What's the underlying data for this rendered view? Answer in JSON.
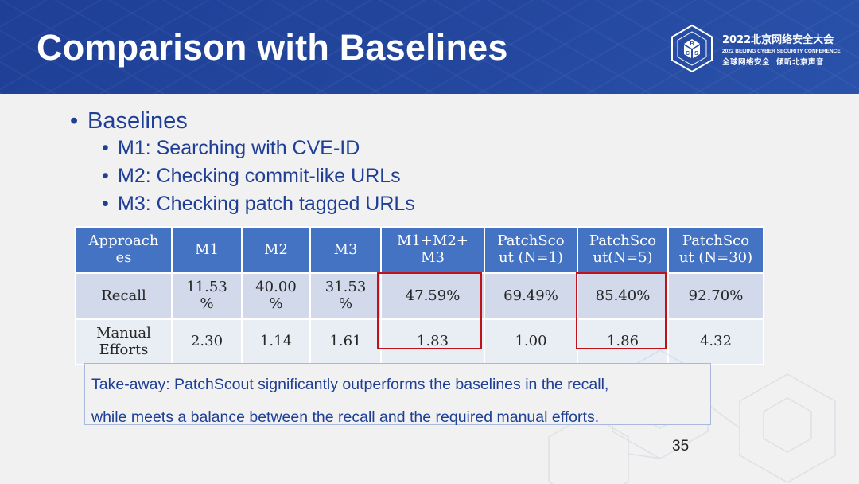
{
  "slide": {
    "title": "Comparison with Baselines",
    "page_number": "35",
    "header_color": "#24489f",
    "text_color": "#1f3f96",
    "highlight_color": "#c0121a"
  },
  "conference": {
    "name_cn": "2022北京网络安全大会",
    "name_en": "2022 BEIJING CYBER SECURITY CONFERENCE",
    "slogan_left": "全球网络安全",
    "slogan_right": "倾听北京声音",
    "logo_icon": "bcs-hexagon-cube-logo"
  },
  "bullets": {
    "heading": "Baselines",
    "items": [
      "M1: Searching with CVE-ID",
      "M2: Checking commit-like URLs",
      "M3: Checking patch tagged URLs"
    ]
  },
  "table": {
    "headers": [
      [
        "Approach",
        "es"
      ],
      [
        "M1"
      ],
      [
        "M2"
      ],
      [
        "M3"
      ],
      [
        "M1+M2+",
        "M3"
      ],
      [
        "PatchSco",
        "ut (N=1)"
      ],
      [
        "PatchSco",
        "ut(N=5)"
      ],
      [
        "PatchSco",
        "ut (N=30)"
      ]
    ],
    "rows": [
      {
        "label": [
          "Recall"
        ],
        "cells": [
          [
            "11.53",
            "%"
          ],
          [
            "40.00",
            "%"
          ],
          [
            "31.53",
            "%"
          ],
          [
            "47.59%"
          ],
          [
            "69.49%"
          ],
          [
            "85.40%"
          ],
          [
            "92.70%"
          ]
        ]
      },
      {
        "label": [
          "Manual",
          "Efforts"
        ],
        "cells": [
          [
            "2.30"
          ],
          [
            "1.14"
          ],
          [
            "1.61"
          ],
          [
            "1.83"
          ],
          [
            "1.00"
          ],
          [
            "1.86"
          ],
          [
            "4.32"
          ]
        ]
      }
    ],
    "highlighted_columns": [
      "M1+M2+M3",
      "PatchScout(N=5)"
    ]
  },
  "takeaway": {
    "line1": "Take-away: PatchScout significantly outperforms the baselines in the recall,",
    "line2": "while meets a balance between the recall and the required manual efforts."
  }
}
